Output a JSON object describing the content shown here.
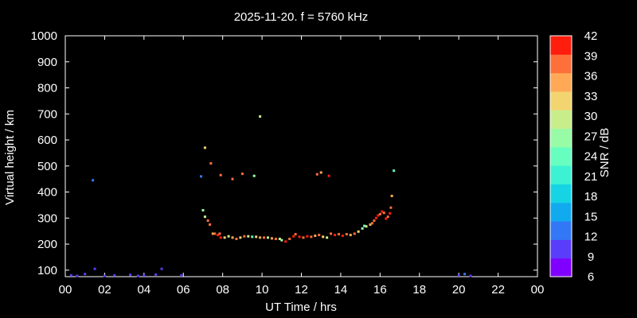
{
  "chart_data": {
    "type": "scatter",
    "title": "2025-11-20. f = 5760 kHz",
    "xlabel": "UT Time / hrs",
    "ylabel": "Virtual height / km",
    "colorbar_label": "SNR / dB",
    "xlim": [
      0,
      24
    ],
    "ylim": [
      75,
      1000
    ],
    "xticks": [
      "00",
      "02",
      "04",
      "06",
      "08",
      "10",
      "12",
      "14",
      "16",
      "18",
      "20",
      "22",
      "00"
    ],
    "xtick_values": [
      0,
      2,
      4,
      6,
      8,
      10,
      12,
      14,
      16,
      18,
      20,
      22,
      24
    ],
    "yticks": [
      100,
      200,
      300,
      400,
      500,
      600,
      700,
      800,
      900,
      1000
    ],
    "colorbar": {
      "range": [
        6,
        42
      ],
      "ticks": [
        42,
        39,
        36,
        33,
        30,
        27,
        24,
        21,
        18,
        15,
        12,
        9,
        6
      ],
      "colors": [
        "#7f00ff",
        "#5a3cfb",
        "#3278f6",
        "#12aaee",
        "#16d4e3",
        "#3cf2d2",
        "#66ffbf",
        "#98fba6",
        "#c8ee8c",
        "#f2d470",
        "#ffa956",
        "#ff6f3a",
        "#ff1d0e"
      ]
    },
    "points": [
      {
        "x": 0.3,
        "y": 80,
        "snr": 9
      },
      {
        "x": 0.6,
        "y": 78,
        "snr": 9
      },
      {
        "x": 1.0,
        "y": 85,
        "snr": 9
      },
      {
        "x": 1.5,
        "y": 105,
        "snr": 9
      },
      {
        "x": 1.4,
        "y": 445,
        "snr": 12
      },
      {
        "x": 2.0,
        "y": 78,
        "snr": 9
      },
      {
        "x": 2.5,
        "y": 80,
        "snr": 9
      },
      {
        "x": 3.3,
        "y": 82,
        "snr": 9
      },
      {
        "x": 3.7,
        "y": 78,
        "snr": 9
      },
      {
        "x": 4.0,
        "y": 80,
        "snr": 9
      },
      {
        "x": 4.6,
        "y": 83,
        "snr": 9
      },
      {
        "x": 4.9,
        "y": 105,
        "snr": 9
      },
      {
        "x": 5.9,
        "y": 80,
        "snr": 9
      },
      {
        "x": 6.9,
        "y": 460,
        "snr": 12
      },
      {
        "x": 7.0,
        "y": 330,
        "snr": 27
      },
      {
        "x": 7.1,
        "y": 305,
        "snr": 30
      },
      {
        "x": 7.1,
        "y": 570,
        "snr": 33
      },
      {
        "x": 7.25,
        "y": 290,
        "snr": 39
      },
      {
        "x": 7.35,
        "y": 275,
        "snr": 39
      },
      {
        "x": 7.4,
        "y": 510,
        "snr": 39
      },
      {
        "x": 7.5,
        "y": 240,
        "snr": 36
      },
      {
        "x": 7.6,
        "y": 240,
        "snr": 39
      },
      {
        "x": 7.75,
        "y": 235,
        "snr": 42
      },
      {
        "x": 7.85,
        "y": 240,
        "snr": 39
      },
      {
        "x": 7.9,
        "y": 225,
        "snr": 42
      },
      {
        "x": 7.9,
        "y": 465,
        "snr": 39
      },
      {
        "x": 8.1,
        "y": 225,
        "snr": 33
      },
      {
        "x": 8.3,
        "y": 230,
        "snr": 30
      },
      {
        "x": 8.5,
        "y": 225,
        "snr": 36
      },
      {
        "x": 8.5,
        "y": 450,
        "snr": 39
      },
      {
        "x": 8.7,
        "y": 220,
        "snr": 39
      },
      {
        "x": 8.9,
        "y": 225,
        "snr": 33
      },
      {
        "x": 9.0,
        "y": 470,
        "snr": 39
      },
      {
        "x": 9.1,
        "y": 230,
        "snr": 39
      },
      {
        "x": 9.3,
        "y": 230,
        "snr": 30
      },
      {
        "x": 9.5,
        "y": 228,
        "snr": 24
      },
      {
        "x": 9.6,
        "y": 462,
        "snr": 27
      },
      {
        "x": 9.7,
        "y": 228,
        "snr": 33
      },
      {
        "x": 9.9,
        "y": 690,
        "snr": 30
      },
      {
        "x": 9.9,
        "y": 225,
        "snr": 36
      },
      {
        "x": 10.1,
        "y": 225,
        "snr": 39
      },
      {
        "x": 10.3,
        "y": 225,
        "snr": 30
      },
      {
        "x": 10.5,
        "y": 222,
        "snr": 36
      },
      {
        "x": 10.7,
        "y": 220,
        "snr": 39
      },
      {
        "x": 10.9,
        "y": 220,
        "snr": 30
      },
      {
        "x": 11.0,
        "y": 215,
        "snr": 27
      },
      {
        "x": 11.2,
        "y": 210,
        "snr": 42
      },
      {
        "x": 11.4,
        "y": 220,
        "snr": 39
      },
      {
        "x": 11.6,
        "y": 230,
        "snr": 42
      },
      {
        "x": 11.7,
        "y": 238,
        "snr": 39
      },
      {
        "x": 11.9,
        "y": 228,
        "snr": 42
      },
      {
        "x": 12.1,
        "y": 225,
        "snr": 39
      },
      {
        "x": 12.3,
        "y": 230,
        "snr": 42
      },
      {
        "x": 12.5,
        "y": 228,
        "snr": 39
      },
      {
        "x": 12.7,
        "y": 232,
        "snr": 36
      },
      {
        "x": 12.8,
        "y": 468,
        "snr": 39
      },
      {
        "x": 12.9,
        "y": 235,
        "snr": 39
      },
      {
        "x": 13.0,
        "y": 475,
        "snr": 36
      },
      {
        "x": 13.1,
        "y": 228,
        "snr": 33
      },
      {
        "x": 13.3,
        "y": 225,
        "snr": 30
      },
      {
        "x": 13.4,
        "y": 462,
        "snr": 42
      },
      {
        "x": 13.5,
        "y": 240,
        "snr": 39
      },
      {
        "x": 13.7,
        "y": 235,
        "snr": 42
      },
      {
        "x": 13.9,
        "y": 238,
        "snr": 39
      },
      {
        "x": 14.1,
        "y": 232,
        "snr": 42
      },
      {
        "x": 14.3,
        "y": 238,
        "snr": 39
      },
      {
        "x": 14.5,
        "y": 235,
        "snr": 36
      },
      {
        "x": 14.7,
        "y": 240,
        "snr": 39
      },
      {
        "x": 14.9,
        "y": 248,
        "snr": 33
      },
      {
        "x": 15.1,
        "y": 260,
        "snr": 27
      },
      {
        "x": 15.2,
        "y": 270,
        "snr": 24
      },
      {
        "x": 15.3,
        "y": 268,
        "snr": 30
      },
      {
        "x": 15.5,
        "y": 275,
        "snr": 36
      },
      {
        "x": 15.6,
        "y": 280,
        "snr": 39
      },
      {
        "x": 15.7,
        "y": 290,
        "snr": 39
      },
      {
        "x": 15.8,
        "y": 300,
        "snr": 42
      },
      {
        "x": 15.9,
        "y": 310,
        "snr": 42
      },
      {
        "x": 16.0,
        "y": 315,
        "snr": 39
      },
      {
        "x": 16.1,
        "y": 325,
        "snr": 42
      },
      {
        "x": 16.2,
        "y": 320,
        "snr": 39
      },
      {
        "x": 16.3,
        "y": 298,
        "snr": 42
      },
      {
        "x": 16.4,
        "y": 305,
        "snr": 39
      },
      {
        "x": 16.5,
        "y": 318,
        "snr": 42
      },
      {
        "x": 16.55,
        "y": 340,
        "snr": 39
      },
      {
        "x": 16.6,
        "y": 385,
        "snr": 36
      },
      {
        "x": 16.7,
        "y": 482,
        "snr": 24
      },
      {
        "x": 20.0,
        "y": 80,
        "snr": 9
      },
      {
        "x": 20.3,
        "y": 85,
        "snr": 12
      },
      {
        "x": 20.6,
        "y": 78,
        "snr": 9
      }
    ]
  }
}
